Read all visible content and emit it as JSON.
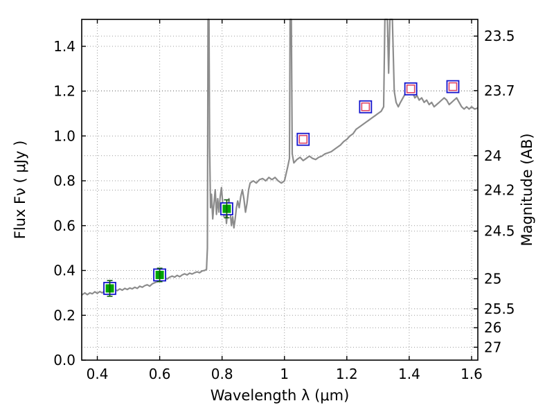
{
  "chart_data": {
    "type": "line+scatter",
    "title": "",
    "xlabel": "Wavelength  λ (μm)",
    "ylabel_left": "Flux  Fν  ( μJy )",
    "ylabel_right": "Magnitude (AB)",
    "xlim": [
      0.35,
      1.62
    ],
    "ylim": [
      0,
      1.52
    ],
    "grid": true,
    "mag_zeropoint": 23.9,
    "xticks": [
      0.4,
      0.6,
      0.8,
      1.0,
      1.2,
      1.4,
      1.6
    ],
    "xtick_labels": [
      "0.4",
      "0.6",
      "0.8",
      "1",
      "1.2",
      "1.4",
      "1.6"
    ],
    "yticks_left": [
      0.0,
      0.2,
      0.4,
      0.6,
      0.8,
      1.0,
      1.2,
      1.4
    ],
    "ytick_left_labels": [
      "0.0",
      "0.2",
      "0.4",
      "0.6",
      "0.8",
      "1.0",
      "1.2",
      "1.4"
    ],
    "yticks_right_mag": [
      23.5,
      23.7,
      24,
      24.2,
      24.5,
      25,
      25.5,
      26,
      27
    ],
    "ytick_right_labels": [
      "23.5",
      "23.7",
      "24",
      "24.2",
      "24.5",
      "25",
      "25.5",
      "26",
      "27"
    ],
    "colors": {
      "spectrum": "#8c8c8c",
      "marker_edge_blue": "#1414cc",
      "marker_inner_red": "#dd4466",
      "marker_fill_green": "#00a404",
      "errorbar_green": "#0e5a0e",
      "grid": "#9a9a9a",
      "axis": "#000000",
      "background": "#ffffff"
    },
    "photometry_green": [
      {
        "x": 0.44,
        "y": 0.32,
        "yerr": 0.035
      },
      {
        "x": 0.6,
        "y": 0.38,
        "yerr": 0.03
      },
      {
        "x": 0.815,
        "y": 0.675,
        "yerr": 0.04
      }
    ],
    "photometry_open": [
      {
        "x": 1.06,
        "y": 0.985
      },
      {
        "x": 1.26,
        "y": 1.13
      },
      {
        "x": 1.405,
        "y": 1.21
      },
      {
        "x": 1.54,
        "y": 1.22
      }
    ],
    "spectrum": {
      "wavelength": [
        0.35,
        0.36,
        0.368,
        0.376,
        0.384,
        0.392,
        0.4,
        0.408,
        0.416,
        0.424,
        0.432,
        0.44,
        0.448,
        0.456,
        0.464,
        0.472,
        0.48,
        0.488,
        0.496,
        0.504,
        0.512,
        0.52,
        0.528,
        0.536,
        0.544,
        0.552,
        0.56,
        0.568,
        0.576,
        0.584,
        0.592,
        0.6,
        0.608,
        0.616,
        0.624,
        0.632,
        0.64,
        0.648,
        0.656,
        0.664,
        0.672,
        0.68,
        0.688,
        0.696,
        0.704,
        0.712,
        0.72,
        0.728,
        0.736,
        0.744,
        0.75,
        0.753,
        0.755,
        0.758,
        0.76,
        0.763,
        0.766,
        0.77,
        0.774,
        0.778,
        0.782,
        0.786,
        0.79,
        0.794,
        0.798,
        0.802,
        0.806,
        0.81,
        0.814,
        0.818,
        0.822,
        0.826,
        0.83,
        0.834,
        0.838,
        0.842,
        0.846,
        0.85,
        0.855,
        0.86,
        0.865,
        0.87,
        0.875,
        0.88,
        0.885,
        0.89,
        0.9,
        0.91,
        0.92,
        0.93,
        0.94,
        0.95,
        0.96,
        0.97,
        0.98,
        0.99,
        1.0,
        1.01,
        1.016,
        1.018,
        1.022,
        1.025,
        1.03,
        1.04,
        1.05,
        1.06,
        1.07,
        1.08,
        1.09,
        1.1,
        1.11,
        1.12,
        1.13,
        1.14,
        1.15,
        1.16,
        1.17,
        1.18,
        1.19,
        1.2,
        1.21,
        1.22,
        1.23,
        1.24,
        1.25,
        1.26,
        1.27,
        1.28,
        1.29,
        1.3,
        1.31,
        1.318,
        1.322,
        1.33,
        1.334,
        1.338,
        1.346,
        1.352,
        1.358,
        1.365,
        1.372,
        1.38,
        1.388,
        1.395,
        1.402,
        1.41,
        1.418,
        1.425,
        1.432,
        1.44,
        1.448,
        1.456,
        1.464,
        1.472,
        1.48,
        1.488,
        1.496,
        1.504,
        1.512,
        1.52,
        1.528,
        1.536,
        1.544,
        1.552,
        1.56,
        1.568,
        1.576,
        1.584,
        1.592,
        1.6,
        1.61,
        1.62
      ],
      "flux": [
        0.29,
        0.3,
        0.292,
        0.3,
        0.296,
        0.305,
        0.298,
        0.306,
        0.3,
        0.31,
        0.305,
        0.312,
        0.308,
        0.315,
        0.31,
        0.318,
        0.312,
        0.32,
        0.315,
        0.322,
        0.318,
        0.325,
        0.32,
        0.33,
        0.325,
        0.332,
        0.336,
        0.33,
        0.34,
        0.345,
        0.35,
        0.355,
        0.36,
        0.368,
        0.362,
        0.37,
        0.375,
        0.37,
        0.378,
        0.372,
        0.38,
        0.385,
        0.38,
        0.388,
        0.384,
        0.39,
        0.394,
        0.39,
        0.398,
        0.4,
        0.405,
        0.5,
        1.6,
        1.6,
        0.95,
        0.68,
        0.74,
        0.63,
        0.7,
        0.76,
        0.65,
        0.72,
        0.66,
        0.73,
        0.77,
        0.7,
        0.64,
        0.7,
        0.61,
        0.67,
        0.72,
        0.66,
        0.6,
        0.64,
        0.59,
        0.63,
        0.68,
        0.71,
        0.68,
        0.73,
        0.76,
        0.72,
        0.66,
        0.7,
        0.76,
        0.79,
        0.8,
        0.79,
        0.805,
        0.81,
        0.8,
        0.815,
        0.805,
        0.815,
        0.8,
        0.79,
        0.8,
        0.86,
        0.9,
        1.6,
        1.6,
        0.92,
        0.88,
        0.895,
        0.905,
        0.89,
        0.9,
        0.91,
        0.9,
        0.895,
        0.905,
        0.91,
        0.92,
        0.925,
        0.93,
        0.94,
        0.95,
        0.96,
        0.975,
        0.985,
        1.0,
        1.01,
        1.03,
        1.04,
        1.05,
        1.06,
        1.07,
        1.08,
        1.09,
        1.1,
        1.11,
        1.13,
        1.6,
        1.6,
        1.28,
        1.6,
        1.6,
        1.2,
        1.15,
        1.13,
        1.15,
        1.17,
        1.19,
        1.21,
        1.22,
        1.2,
        1.17,
        1.18,
        1.16,
        1.17,
        1.15,
        1.16,
        1.14,
        1.15,
        1.13,
        1.14,
        1.15,
        1.16,
        1.17,
        1.16,
        1.14,
        1.15,
        1.16,
        1.17,
        1.15,
        1.13,
        1.12,
        1.13,
        1.12,
        1.13,
        1.12,
        1.125
      ]
    }
  }
}
